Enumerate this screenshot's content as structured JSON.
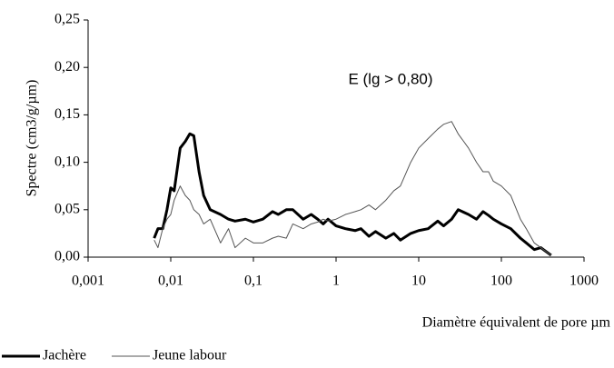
{
  "chart_data": {
    "type": "line",
    "y_label": "Spectre (cm3/g/µm)",
    "x_label": "Diamètre équivalent de pore µm",
    "annotation": "E (lg > 0,80)",
    "xscale": "log",
    "xlim": [
      0.001,
      1000
    ],
    "xticks": [
      {
        "value": 0.001,
        "label": "0,001"
      },
      {
        "value": 0.01,
        "label": "0,01"
      },
      {
        "value": 0.1,
        "label": "0,1"
      },
      1,
      10,
      100,
      1000
    ],
    "ylim": [
      0,
      0.25
    ],
    "yticks": [
      {
        "value": 0,
        "label": "0,00"
      },
      {
        "value": 0.05,
        "label": "0,05"
      },
      {
        "value": 0.1,
        "label": "0,10"
      },
      {
        "value": 0.15,
        "label": "0,15"
      },
      {
        "value": 0.2,
        "label": "0,20"
      },
      {
        "value": 0.25,
        "label": "0,25"
      }
    ],
    "grid": false,
    "legend": "bottom-left",
    "x": [
      0.0063,
      0.007,
      0.008,
      0.009,
      0.01,
      0.011,
      0.013,
      0.015,
      0.017,
      0.019,
      0.022,
      0.025,
      0.03,
      0.04,
      0.05,
      0.06,
      0.08,
      0.1,
      0.13,
      0.17,
      0.2,
      0.25,
      0.3,
      0.4,
      0.5,
      0.6,
      0.7,
      0.8,
      1,
      1.3,
      1.7,
      2,
      2.5,
      3,
      4,
      5,
      6,
      8,
      10,
      13,
      17,
      20,
      25,
      30,
      40,
      50,
      60,
      70,
      80,
      100,
      130,
      170,
      200,
      250,
      300,
      400
    ],
    "series": [
      {
        "name": "Jachère",
        "color": "#000000",
        "line_width": 3,
        "values": [
          0.02,
          0.03,
          0.03,
          0.05,
          0.073,
          0.07,
          0.115,
          0.122,
          0.13,
          0.128,
          0.09,
          0.065,
          0.05,
          0.045,
          0.04,
          0.038,
          0.04,
          0.037,
          0.04,
          0.048,
          0.045,
          0.05,
          0.05,
          0.04,
          0.045,
          0.04,
          0.035,
          0.04,
          0.033,
          0.03,
          0.028,
          0.03,
          0.022,
          0.027,
          0.02,
          0.025,
          0.018,
          0.025,
          0.028,
          0.03,
          0.038,
          0.033,
          0.04,
          0.05,
          0.045,
          0.04,
          0.048,
          0.044,
          0.04,
          0.035,
          0.03,
          0.02,
          0.015,
          0.008,
          0.01,
          0.002
        ]
      },
      {
        "name": "Jeune labour",
        "color": "#555555",
        "line_width": 1,
        "values": [
          0.018,
          0.01,
          0.03,
          0.04,
          0.045,
          0.06,
          0.075,
          0.065,
          0.06,
          0.05,
          0.045,
          0.035,
          0.04,
          0.015,
          0.03,
          0.01,
          0.02,
          0.015,
          0.015,
          0.02,
          0.022,
          0.02,
          0.035,
          0.03,
          0.035,
          0.037,
          0.04,
          0.038,
          0.04,
          0.045,
          0.048,
          0.05,
          0.055,
          0.05,
          0.06,
          0.07,
          0.075,
          0.1,
          0.115,
          0.125,
          0.135,
          0.14,
          0.143,
          0.13,
          0.115,
          0.1,
          0.09,
          0.09,
          0.08,
          0.075,
          0.065,
          0.04,
          0.03,
          0.015,
          0.01,
          0.002
        ]
      }
    ]
  }
}
